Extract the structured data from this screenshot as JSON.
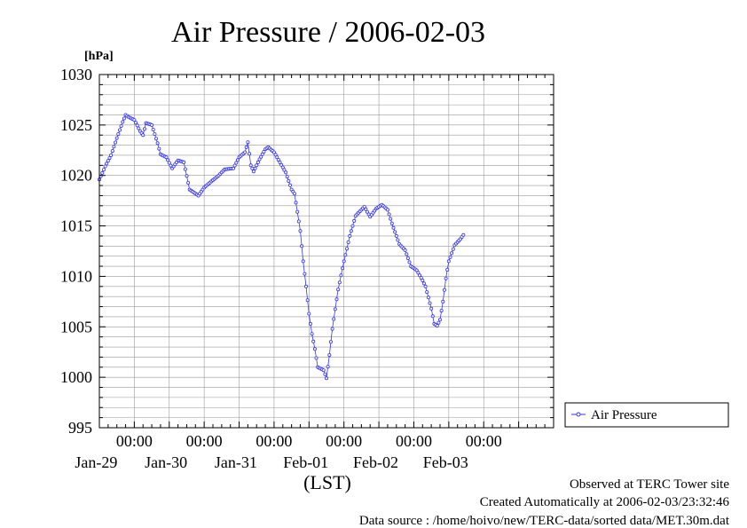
{
  "chart_data": {
    "type": "line",
    "title": "Air Pressure / 2006-02-03",
    "ylabel": "[hPa]",
    "xlabel": "(LST)",
    "ylim": [
      995,
      1030
    ],
    "y_ticks": [
      995,
      1000,
      1005,
      1010,
      1015,
      1020,
      1025,
      1030
    ],
    "y_ticks_fmt": [
      "995",
      "1000",
      "1005",
      "1010",
      "1015",
      "1020",
      "1025",
      "1030"
    ],
    "xlim": [
      "2006-01-28T12:00",
      "2006-02-04T00:00"
    ],
    "x_ticks": [
      {
        "at": "2006-01-29T00:00",
        "time": "00:00",
        "date": "Jan-29"
      },
      {
        "at": "2006-01-30T00:00",
        "time": "00:00",
        "date": "Jan-30"
      },
      {
        "at": "2006-01-31T00:00",
        "time": "00:00",
        "date": "Jan-31"
      },
      {
        "at": "2006-02-01T00:00",
        "time": "00:00",
        "date": "Feb-01"
      },
      {
        "at": "2006-02-02T00:00",
        "time": "00:00",
        "date": "Feb-02"
      },
      {
        "at": "2006-02-03T00:00",
        "time": "00:00",
        "date": "Feb-03"
      }
    ],
    "grid": true,
    "legend_position": "right",
    "colors": {
      "series": "#3333ff",
      "grid": "#999999",
      "axis": "#000000"
    },
    "series": [
      {
        "name": "Air Pressure",
        "points": [
          {
            "t": "2006-01-28T12:00",
            "y": 1019.6
          },
          {
            "t": "2006-01-28T14:00",
            "y": 1020.9
          },
          {
            "t": "2006-01-28T16:00",
            "y": 1022.0
          },
          {
            "t": "2006-01-28T18:00",
            "y": 1023.7
          },
          {
            "t": "2006-01-28T20:00",
            "y": 1025.3
          },
          {
            "t": "2006-01-28T21:00",
            "y": 1026.0
          },
          {
            "t": "2006-01-28T22:00",
            "y": 1025.8
          },
          {
            "t": "2006-01-29T00:00",
            "y": 1025.5
          },
          {
            "t": "2006-01-29T02:00",
            "y": 1024.4
          },
          {
            "t": "2006-01-29T03:00",
            "y": 1024.0
          },
          {
            "t": "2006-01-29T04:00",
            "y": 1025.2
          },
          {
            "t": "2006-01-29T06:00",
            "y": 1025.0
          },
          {
            "t": "2006-01-29T08:00",
            "y": 1023.2
          },
          {
            "t": "2006-01-29T09:00",
            "y": 1022.1
          },
          {
            "t": "2006-01-29T11:00",
            "y": 1021.8
          },
          {
            "t": "2006-01-29T13:00",
            "y": 1020.7
          },
          {
            "t": "2006-01-29T15:00",
            "y": 1021.5
          },
          {
            "t": "2006-01-29T17:00",
            "y": 1021.3
          },
          {
            "t": "2006-01-29T19:00",
            "y": 1018.6
          },
          {
            "t": "2006-01-29T21:00",
            "y": 1018.2
          },
          {
            "t": "2006-01-29T22:00",
            "y": 1018.0
          },
          {
            "t": "2006-01-30T00:00",
            "y": 1018.8
          },
          {
            "t": "2006-01-30T02:00",
            "y": 1019.3
          },
          {
            "t": "2006-01-30T05:00",
            "y": 1020.0
          },
          {
            "t": "2006-01-30T07:00",
            "y": 1020.6
          },
          {
            "t": "2006-01-30T10:00",
            "y": 1020.7
          },
          {
            "t": "2006-01-30T12:00",
            "y": 1021.8
          },
          {
            "t": "2006-01-30T14:00",
            "y": 1022.3
          },
          {
            "t": "2006-01-30T15:00",
            "y": 1023.3
          },
          {
            "t": "2006-01-30T16:00",
            "y": 1021.0
          },
          {
            "t": "2006-01-30T17:00",
            "y": 1020.4
          },
          {
            "t": "2006-01-30T19:00",
            "y": 1021.6
          },
          {
            "t": "2006-01-30T21:00",
            "y": 1022.6
          },
          {
            "t": "2006-01-30T22:00",
            "y": 1022.8
          },
          {
            "t": "2006-01-31T00:00",
            "y": 1022.3
          },
          {
            "t": "2006-01-31T02:00",
            "y": 1021.3
          },
          {
            "t": "2006-01-31T04:00",
            "y": 1020.3
          },
          {
            "t": "2006-01-31T06:00",
            "y": 1018.6
          },
          {
            "t": "2006-01-31T07:00",
            "y": 1018.2
          },
          {
            "t": "2006-01-31T08:00",
            "y": 1016.4
          },
          {
            "t": "2006-01-31T09:00",
            "y": 1014.5
          },
          {
            "t": "2006-01-31T10:00",
            "y": 1011.5
          },
          {
            "t": "2006-01-31T11:00",
            "y": 1009.0
          },
          {
            "t": "2006-01-31T12:00",
            "y": 1006.3
          },
          {
            "t": "2006-01-31T13:00",
            "y": 1004.3
          },
          {
            "t": "2006-01-31T14:00",
            "y": 1002.8
          },
          {
            "t": "2006-01-31T15:00",
            "y": 1001.0
          },
          {
            "t": "2006-01-31T17:00",
            "y": 1000.7
          },
          {
            "t": "2006-01-31T18:00",
            "y": 999.9
          },
          {
            "t": "2006-01-31T19:00",
            "y": 1002.2
          },
          {
            "t": "2006-01-31T20:00",
            "y": 1004.8
          },
          {
            "t": "2006-01-31T22:00",
            "y": 1008.7
          },
          {
            "t": "2006-02-01T00:00",
            "y": 1011.5
          },
          {
            "t": "2006-02-01T02:00",
            "y": 1014.0
          },
          {
            "t": "2006-02-01T04:00",
            "y": 1016.0
          },
          {
            "t": "2006-02-01T06:00",
            "y": 1016.6
          },
          {
            "t": "2006-02-01T07:00",
            "y": 1016.9
          },
          {
            "t": "2006-02-01T09:00",
            "y": 1015.9
          },
          {
            "t": "2006-02-01T11:00",
            "y": 1016.7
          },
          {
            "t": "2006-02-01T13:00",
            "y": 1017.1
          },
          {
            "t": "2006-02-01T15:00",
            "y": 1016.6
          },
          {
            "t": "2006-02-01T17:00",
            "y": 1014.8
          },
          {
            "t": "2006-02-01T19:00",
            "y": 1013.2
          },
          {
            "t": "2006-02-01T21:00",
            "y": 1012.6
          },
          {
            "t": "2006-02-01T23:00",
            "y": 1011.0
          },
          {
            "t": "2006-02-02T01:00",
            "y": 1010.6
          },
          {
            "t": "2006-02-02T03:00",
            "y": 1009.6
          },
          {
            "t": "2006-02-02T04:00",
            "y": 1009.0
          },
          {
            "t": "2006-02-02T06:00",
            "y": 1006.8
          },
          {
            "t": "2006-02-02T07:00",
            "y": 1005.3
          },
          {
            "t": "2006-02-02T08:00",
            "y": 1005.1
          },
          {
            "t": "2006-02-02T09:00",
            "y": 1005.7
          },
          {
            "t": "2006-02-02T10:00",
            "y": 1007.5
          },
          {
            "t": "2006-02-02T11:00",
            "y": 1009.8
          },
          {
            "t": "2006-02-02T12:00",
            "y": 1011.5
          },
          {
            "t": "2006-02-02T14:00",
            "y": 1013.1
          },
          {
            "t": "2006-02-02T16:00",
            "y": 1013.7
          },
          {
            "t": "2006-02-02T17:00",
            "y": 1014.1
          }
        ]
      }
    ]
  },
  "notes": {
    "observed": "Observed at TERC Tower site",
    "created": "Created Automatically at 2006-02-03/23:32:46",
    "source": "Data source : /home/hoivo/new/TERC-data/sorted  data/MET.30m.dat"
  }
}
